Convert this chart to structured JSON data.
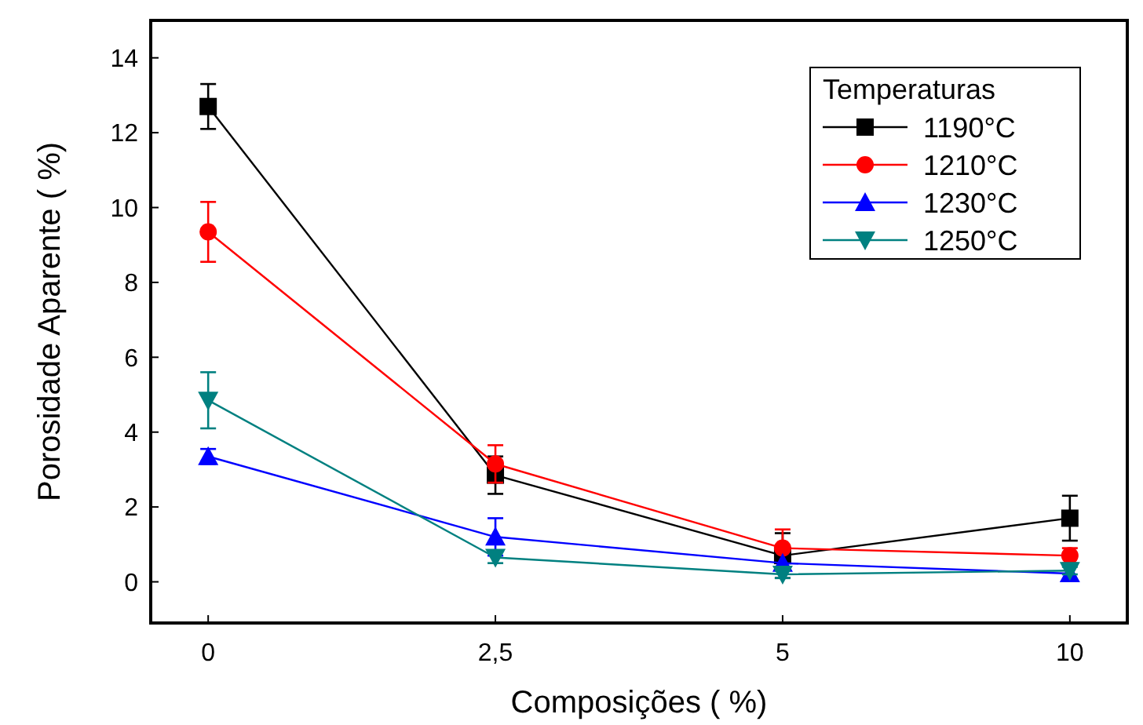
{
  "chart_data": {
    "type": "line",
    "xlabel": "Composições  ( %)",
    "ylabel": "Porosidade Aparente  ( %)",
    "legend_title": "Temperaturas",
    "categories": [
      "0",
      "2,5",
      "5",
      "10"
    ],
    "ylim": [
      -1.1,
      15
    ],
    "yticks": [
      0,
      2,
      4,
      6,
      8,
      10,
      12,
      14
    ],
    "legend": "top right",
    "grid": false,
    "series": [
      {
        "name": "1190°C",
        "color": "#000000",
        "marker": "square",
        "values": [
          12.7,
          2.85,
          0.7,
          1.7
        ],
        "errors": [
          0.6,
          0.5,
          0.6,
          0.6
        ]
      },
      {
        "name": "1210°C",
        "color": "#ff0000",
        "marker": "circle",
        "values": [
          9.35,
          3.15,
          0.9,
          0.7
        ],
        "errors": [
          0.8,
          0.5,
          0.5,
          0.2
        ]
      },
      {
        "name": "1230°C",
        "color": "#0000ff",
        "marker": "triangle",
        "values": [
          3.35,
          1.2,
          0.5,
          0.22
        ],
        "errors": [
          0.2,
          0.5,
          null,
          null
        ]
      },
      {
        "name": "1250°C",
        "color": "#008080",
        "marker": "triangle-down",
        "values": [
          4.85,
          0.65,
          0.2,
          0.3
        ],
        "errors": [
          0.75,
          0.15,
          0.1,
          0.1
        ]
      }
    ]
  }
}
